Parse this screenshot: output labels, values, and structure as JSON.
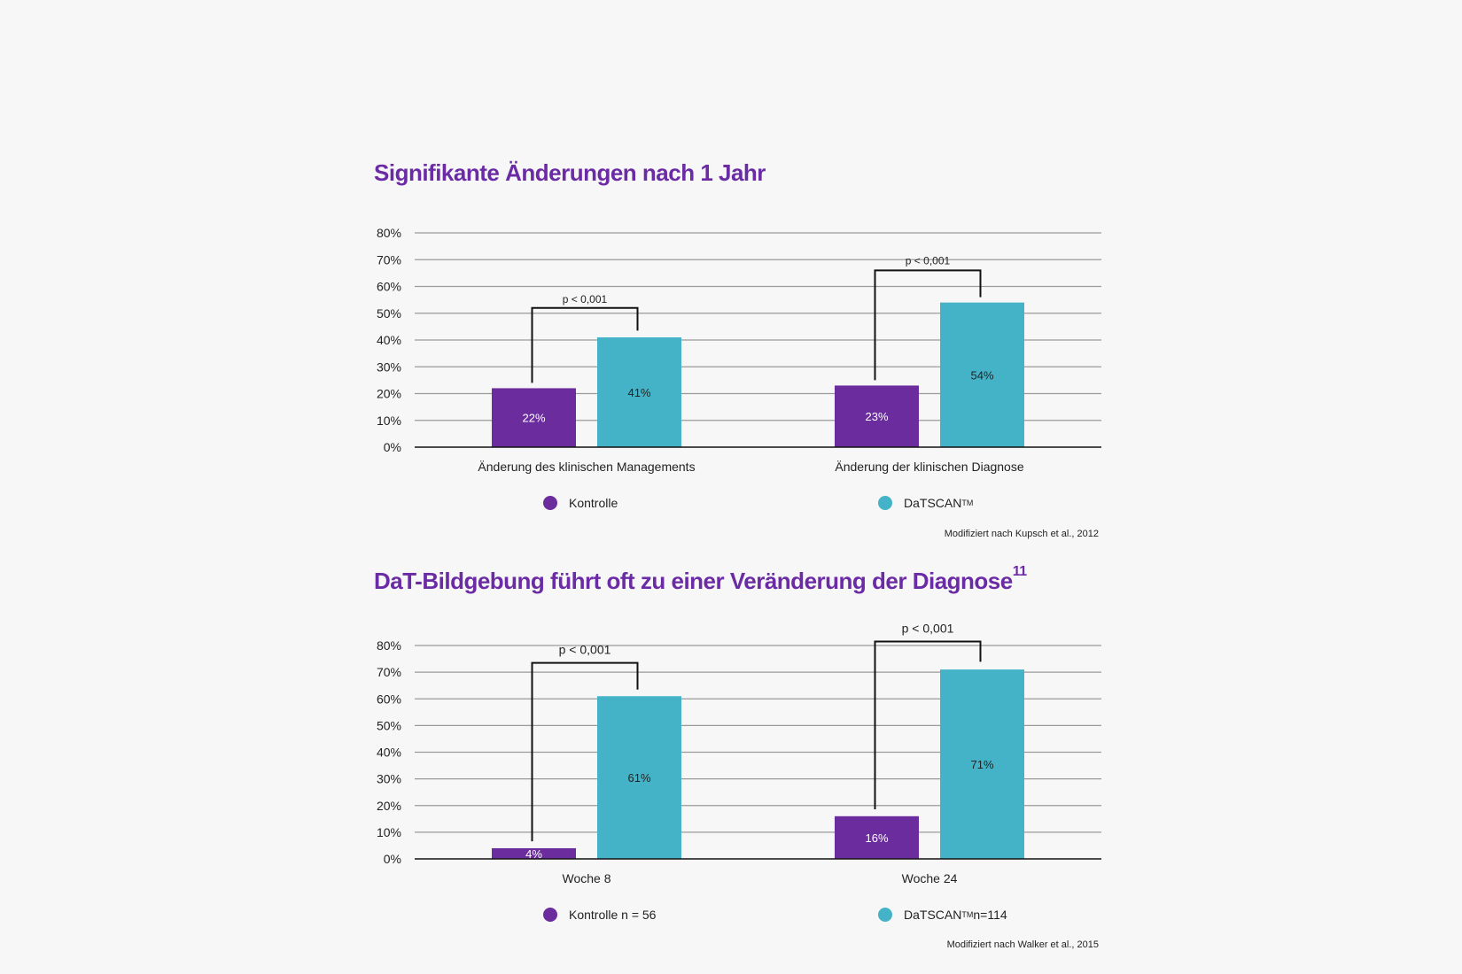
{
  "colors": {
    "kontrolle": "#6b2c9e",
    "datscan": "#45b3c7",
    "title": "#6b2ba5"
  },
  "chart_data": [
    {
      "type": "bar",
      "title": "Signifikante Änderungen nach 1 Jahr",
      "categories": [
        "Änderung des klinischen Managements",
        "Änderung der klinischen Diagnose"
      ],
      "series": [
        {
          "name": "Kontrolle",
          "values": [
            22,
            23
          ],
          "labels": [
            "22%",
            "23%"
          ]
        },
        {
          "name": "DaTSCAN",
          "name_sup": "TM",
          "values": [
            41,
            54
          ],
          "labels": [
            "41%",
            "54%"
          ]
        }
      ],
      "ylim": [
        0,
        80
      ],
      "yticks": [
        "0%",
        "10%",
        "20%",
        "30%",
        "40%",
        "50%",
        "60%",
        "70%",
        "80%"
      ],
      "grid": true,
      "legend_position": "bottom",
      "annotations": [
        "p < 0,001",
        "p < 0,001"
      ],
      "source": "Modifiziert nach Kupsch et al., 2012"
    },
    {
      "type": "bar",
      "title": "DaT-Bildgebung führt oft zu einer Veränderung der Diagnose",
      "title_sup": "11",
      "categories": [
        "Woche 8",
        "Woche 24"
      ],
      "series": [
        {
          "name": "Kontrolle n = 56",
          "values": [
            4,
            16
          ],
          "labels": [
            "4%",
            "16%"
          ]
        },
        {
          "name": "DaTSCAN",
          "name_sup": "TM",
          "name_suffix": " n=114",
          "values": [
            61,
            71
          ],
          "labels": [
            "61%",
            "71%"
          ]
        }
      ],
      "ylim": [
        0,
        80
      ],
      "yticks": [
        "0%",
        "10%",
        "20%",
        "30%",
        "40%",
        "50%",
        "60%",
        "70%",
        "80%"
      ],
      "grid": true,
      "legend_position": "bottom",
      "annotations": [
        "p < 0,001",
        "p < 0,001"
      ],
      "source": "Modifiziert nach Walker et al., 2015"
    }
  ]
}
